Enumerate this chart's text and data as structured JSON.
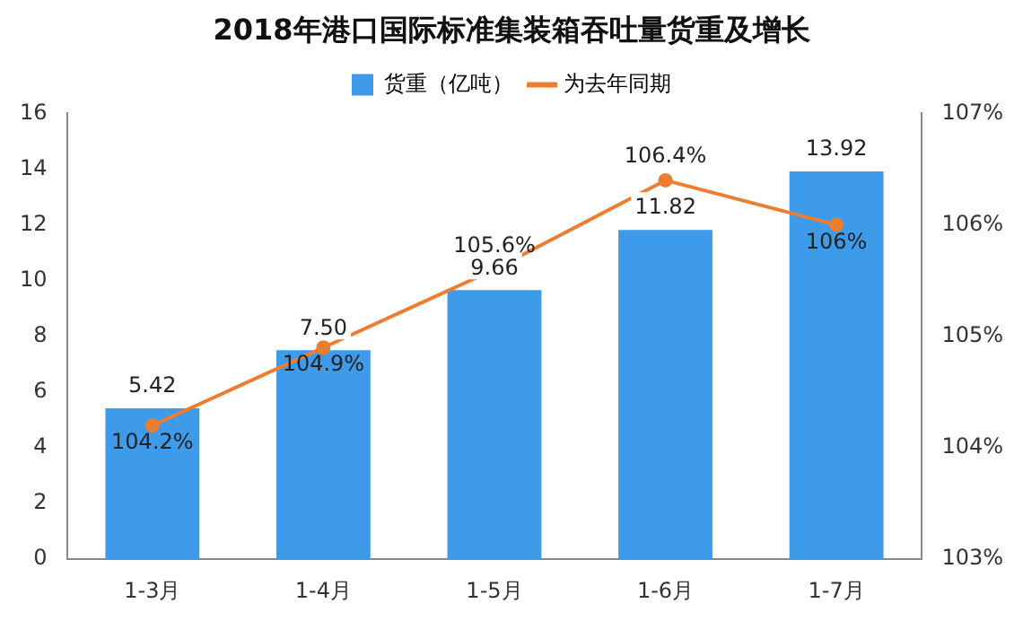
{
  "chart_data": {
    "type": "bar",
    "title": "2018年港口国际标准集装箱吞吐量货重及增长",
    "categories": [
      "1-3月",
      "1-4月",
      "1-5月",
      "1-6月",
      "1-7月"
    ],
    "series": [
      {
        "name": "货重（亿吨）",
        "color": "#3d9be9",
        "values": [
          5.42,
          7.5,
          9.66,
          11.82,
          13.92
        ],
        "value_labels": [
          "5.42",
          "7.50",
          "9.66",
          "11.82",
          "13.92"
        ]
      },
      {
        "name": "为去年同期",
        "type": "line",
        "axis": "y2",
        "color": "#ed7d31",
        "values": [
          104.2,
          104.9,
          105.6,
          106.4,
          106
        ],
        "value_labels": [
          "104.2%",
          "104.9%",
          "105.6%",
          "106.4%",
          "106%"
        ]
      }
    ],
    "ylim": [
      0,
      16
    ],
    "yticks": [
      0,
      2,
      4,
      6,
      8,
      10,
      12,
      14,
      16
    ],
    "y2lim": [
      103,
      107
    ],
    "y2ticks": [
      {
        "value": 103,
        "label": "103%"
      },
      {
        "value": 104,
        "label": "104%"
      },
      {
        "value": 105,
        "label": "105%"
      },
      {
        "value": 106,
        "label": "106%"
      },
      {
        "value": 107,
        "label": "107%"
      }
    ],
    "grid": false,
    "legend": "top",
    "marker": "circle"
  }
}
